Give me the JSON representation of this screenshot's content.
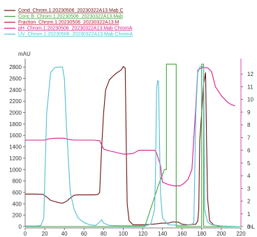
{
  "chart_data": {
    "type": "line",
    "title": "",
    "xlabel": "mL",
    "ylabel": "mAU",
    "xlim": [
      0,
      220
    ],
    "ylim_left": [
      0,
      2900
    ],
    "ylim_right": [
      0,
      13
    ],
    "x_ticks": [
      "0",
      "20",
      "40",
      "60",
      "80",
      "100",
      "120",
      "140",
      "160",
      "180",
      "200",
      "220"
    ],
    "y_left_ticks": [
      "0",
      "200",
      "400",
      "600",
      "800",
      "1000",
      "1200",
      "1400",
      "1600",
      "1800",
      "2000",
      "2200",
      "2400",
      "2600",
      "2800"
    ],
    "y_right_ticks": [
      "0",
      "1",
      "2",
      "3",
      "4",
      "5",
      "6",
      "7",
      "8",
      "9",
      "10",
      "11",
      "12"
    ],
    "legend_position": "top-left",
    "series": [
      {
        "name": "Cond_Chrom.1:20230506_20230322A13.Mab C",
        "color": "#6b0f0f",
        "axis": "left",
        "points": [
          [
            0,
            570
          ],
          [
            10,
            570
          ],
          [
            18,
            565
          ],
          [
            22,
            520
          ],
          [
            26,
            460
          ],
          [
            30,
            440
          ],
          [
            34,
            420
          ],
          [
            38,
            410
          ],
          [
            42,
            440
          ],
          [
            46,
            500
          ],
          [
            50,
            550
          ],
          [
            54,
            555
          ],
          [
            62,
            555
          ],
          [
            70,
            555
          ],
          [
            74,
            560
          ],
          [
            76,
            600
          ],
          [
            78,
            1400
          ],
          [
            80,
            2000
          ],
          [
            82,
            2400
          ],
          [
            86,
            2580
          ],
          [
            92,
            2680
          ],
          [
            98,
            2750
          ],
          [
            100,
            2810
          ],
          [
            102,
            2780
          ],
          [
            103,
            1500
          ],
          [
            104,
            400
          ],
          [
            106,
            100
          ],
          [
            110,
            30
          ],
          [
            120,
            30
          ],
          [
            130,
            40
          ],
          [
            140,
            60
          ],
          [
            146,
            60
          ],
          [
            150,
            80
          ],
          [
            156,
            80
          ],
          [
            160,
            40
          ],
          [
            166,
            30
          ],
          [
            174,
            40
          ],
          [
            176,
            100
          ],
          [
            177,
            300
          ],
          [
            178,
            1500
          ],
          [
            180,
            2000
          ],
          [
            182,
            2500
          ],
          [
            184,
            2700
          ],
          [
            185,
            1500
          ],
          [
            186,
            500
          ],
          [
            188,
            100
          ],
          [
            192,
            30
          ],
          [
            200,
            0
          ],
          [
            210,
            0
          ]
        ]
      },
      {
        "name": "Conc B_Chrom.1:20230506_20230322A13.Mab",
        "color": "#3fa33a",
        "axis": "left",
        "points": [
          [
            0,
            0
          ],
          [
            110,
            0
          ],
          [
            122,
            0
          ],
          [
            136,
            730
          ],
          [
            142,
            1000
          ],
          [
            144,
            1000
          ],
          [
            144,
            2850
          ],
          [
            154,
            2850
          ],
          [
            154,
            0
          ],
          [
            174,
            0
          ],
          [
            180,
            0
          ],
          [
            180,
            2850
          ],
          [
            182,
            2850
          ],
          [
            182,
            0
          ],
          [
            220,
            0
          ]
        ]
      },
      {
        "name": "Fraction_Chrom.1:20230506_20230322A13.M",
        "color": "#c01030",
        "axis": "left",
        "points": []
      },
      {
        "name": "pH_Chrom.1:20230506_20230322A13.Mab ChromA",
        "color": "#d81b8a",
        "axis": "right",
        "points": [
          [
            0,
            6.8
          ],
          [
            10,
            6.8
          ],
          [
            20,
            6.8
          ],
          [
            24,
            6.9
          ],
          [
            30,
            6.95
          ],
          [
            40,
            6.95
          ],
          [
            44,
            6.85
          ],
          [
            50,
            6.8
          ],
          [
            60,
            6.8
          ],
          [
            70,
            6.8
          ],
          [
            76,
            6.75
          ],
          [
            80,
            6.1
          ],
          [
            86,
            5.95
          ],
          [
            92,
            5.85
          ],
          [
            100,
            5.7
          ],
          [
            104,
            5.7
          ],
          [
            110,
            5.75
          ],
          [
            116,
            6.0
          ],
          [
            124,
            6.0
          ],
          [
            132,
            6.0
          ],
          [
            134,
            5.8
          ],
          [
            138,
            4.8
          ],
          [
            140,
            3.5
          ],
          [
            146,
            3.3
          ],
          [
            152,
            3.2
          ],
          [
            158,
            3.2
          ],
          [
            162,
            3.4
          ],
          [
            166,
            3.7
          ],
          [
            170,
            4.5
          ],
          [
            174,
            9.5
          ],
          [
            176,
            12.3
          ],
          [
            180,
            12.5
          ],
          [
            186,
            12.5
          ],
          [
            190,
            12.2
          ],
          [
            194,
            11.0
          ],
          [
            200,
            10.3
          ],
          [
            206,
            9.8
          ],
          [
            210,
            9.6
          ],
          [
            214,
            9.5
          ]
        ]
      },
      {
        "name": "UV_Chrom.1:20230506_20230322A13.Mab ChromA",
        "color": "#4fbfcf",
        "axis": "left",
        "points": [
          [
            0,
            10
          ],
          [
            12,
            10
          ],
          [
            16,
            20
          ],
          [
            19,
            150
          ],
          [
            20,
            800
          ],
          [
            22,
            2000
          ],
          [
            26,
            2700
          ],
          [
            30,
            2790
          ],
          [
            34,
            2800
          ],
          [
            38,
            2800
          ],
          [
            40,
            2600
          ],
          [
            42,
            1800
          ],
          [
            46,
            600
          ],
          [
            50,
            300
          ],
          [
            54,
            150
          ],
          [
            60,
            70
          ],
          [
            66,
            30
          ],
          [
            72,
            20
          ],
          [
            76,
            80
          ],
          [
            78,
            120
          ],
          [
            80,
            60
          ],
          [
            86,
            20
          ],
          [
            100,
            15
          ],
          [
            116,
            15
          ],
          [
            124,
            20
          ],
          [
            128,
            40
          ],
          [
            132,
            300
          ],
          [
            133,
            1000
          ],
          [
            134,
            2400
          ],
          [
            135,
            2560
          ],
          [
            136,
            2550
          ],
          [
            137,
            1500
          ],
          [
            138,
            600
          ],
          [
            140,
            150
          ],
          [
            146,
            30
          ],
          [
            160,
            20
          ],
          [
            170,
            30
          ],
          [
            172,
            80
          ],
          [
            174,
            2000
          ],
          [
            176,
            2700
          ],
          [
            178,
            2800
          ],
          [
            180,
            2820
          ],
          [
            182,
            2800
          ],
          [
            183,
            300
          ],
          [
            186,
            80
          ],
          [
            190,
            30
          ],
          [
            200,
            10
          ],
          [
            220,
            0
          ]
        ]
      }
    ]
  }
}
